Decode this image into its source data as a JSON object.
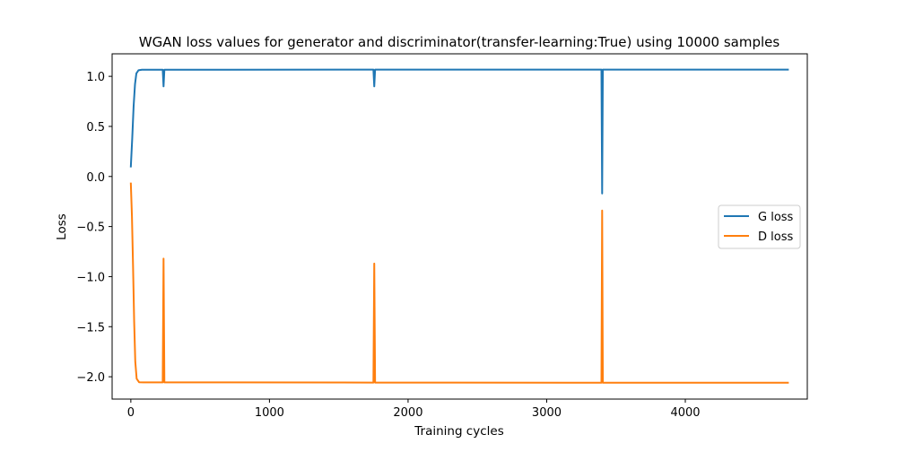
{
  "chart_data": {
    "type": "line",
    "title": "WGAN loss values for generator and discriminator(transfer-learning:True) using 10000 samples",
    "xlabel": "Training cycles",
    "ylabel": "Loss",
    "xlim": [
      -135,
      4880
    ],
    "ylim": [
      -2.223,
      1.225
    ],
    "xticks": [
      0,
      1000,
      2000,
      3000,
      4000
    ],
    "xtick_labels": [
      "0",
      "1000",
      "2000",
      "3000",
      "4000"
    ],
    "yticks": [
      1.0,
      0.5,
      0.0,
      -0.5,
      -1.0,
      -1.5,
      -2.0
    ],
    "ytick_labels": [
      "1.0",
      "0.5",
      "0.0",
      "−0.5",
      "−1.0",
      "−1.5",
      "−2.0"
    ],
    "grid": false,
    "legend_position": "center-right",
    "series": [
      {
        "name": "G loss",
        "color": "#1f77b4",
        "points": [
          [
            0,
            0.1
          ],
          [
            10,
            0.38
          ],
          [
            20,
            0.7
          ],
          [
            30,
            0.92
          ],
          [
            40,
            1.03
          ],
          [
            55,
            1.06
          ],
          [
            80,
            1.066
          ],
          [
            230,
            1.066
          ],
          [
            236,
            0.9
          ],
          [
            242,
            1.066
          ],
          [
            1750,
            1.067
          ],
          [
            1756,
            0.9
          ],
          [
            1762,
            1.067
          ],
          [
            3395,
            1.067
          ],
          [
            3400,
            -0.17
          ],
          [
            3405,
            1.067
          ],
          [
            4740,
            1.067
          ]
        ]
      },
      {
        "name": "D loss",
        "color": "#ff7f0e",
        "points": [
          [
            0,
            -0.07
          ],
          [
            8,
            -0.4
          ],
          [
            16,
            -0.9
          ],
          [
            24,
            -1.45
          ],
          [
            32,
            -1.85
          ],
          [
            42,
            -2.02
          ],
          [
            60,
            -2.055
          ],
          [
            90,
            -2.056
          ],
          [
            230,
            -2.056
          ],
          [
            236,
            -0.82
          ],
          [
            242,
            -2.056
          ],
          [
            1750,
            -2.058
          ],
          [
            1756,
            -0.87
          ],
          [
            1762,
            -2.058
          ],
          [
            3395,
            -2.06
          ],
          [
            3400,
            -0.34
          ],
          [
            3405,
            -2.06
          ],
          [
            4740,
            -2.06
          ]
        ]
      }
    ]
  }
}
